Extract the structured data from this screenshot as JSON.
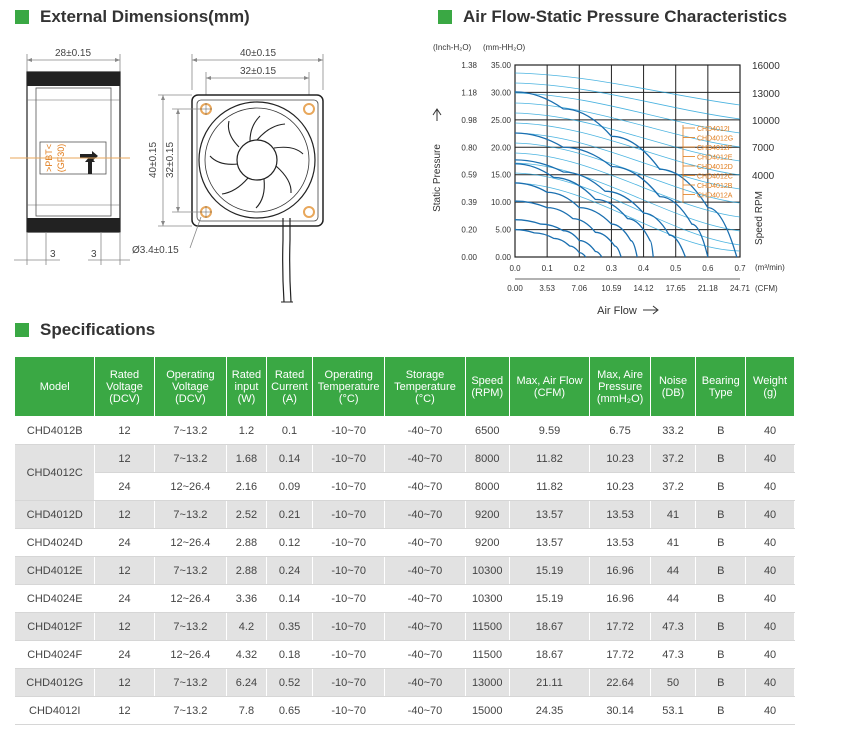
{
  "sections": {
    "dimensions_title": "External Dimensions(mm)",
    "chart_title": "Air Flow-Static Pressure Characteristics",
    "specs_title": "Specifications"
  },
  "dimensions": {
    "side_width": "28±0.15",
    "front_width": "40±0.15",
    "hole_spacing": "32±0.15",
    "front_height": "40±0.15",
    "hole_spacing_v": "32±0.15",
    "hole_diameter": "Ø3.4±0.15",
    "side_left": "3",
    "side_right": "3",
    "label_material": ">PBT<",
    "label_grade": "(GF30)"
  },
  "chart_data": {
    "type": "line",
    "unit_left_inch": "(Inch-H₂O)",
    "unit_left_mm": "(mm-HH₂O)",
    "ylabel": "Static Pressure",
    "xlabel": "Air Flow",
    "x_unit_m3": "(m³/min)",
    "x_unit_cfm": "(CFM)",
    "y2label": "Speed RPM",
    "y_ticks_inch": [
      "1.38",
      "1.18",
      "0.98",
      "0.80",
      "0.59",
      "0.39",
      "0.20",
      "0.00"
    ],
    "y_ticks_mm": [
      "35.00",
      "30.00",
      "25.00",
      "20.00",
      "15.00",
      "10.00",
      "5.00",
      "0.00"
    ],
    "x_ticks_m3": [
      "0.0",
      "0.1",
      "0.2",
      "0.3",
      "0.4",
      "0.5",
      "0.6",
      "0.7"
    ],
    "x_ticks_cfm": [
      "0.00",
      "3.53",
      "7.06",
      "10.59",
      "14.12",
      "17.65",
      "21.18",
      "24.71"
    ],
    "rpm_ticks": [
      "16000",
      "13000",
      "10000",
      "7000",
      "4000"
    ],
    "xlim": [
      0,
      0.7
    ],
    "ylim": [
      0,
      35
    ],
    "series": [
      {
        "name": "CHD4012I",
        "values": [
          [
            0,
            30.1
          ],
          [
            0.15,
            27
          ],
          [
            0.3,
            22
          ],
          [
            0.45,
            16
          ],
          [
            0.6,
            9
          ],
          [
            0.69,
            0
          ]
        ]
      },
      {
        "name": "CHD4012G",
        "values": [
          [
            0,
            22.6
          ],
          [
            0.15,
            20
          ],
          [
            0.3,
            16.5
          ],
          [
            0.45,
            11
          ],
          [
            0.55,
            6
          ],
          [
            0.6,
            0
          ]
        ]
      },
      {
        "name": "CHD4012F",
        "values": [
          [
            0,
            17.7
          ],
          [
            0.15,
            15.5
          ],
          [
            0.28,
            12
          ],
          [
            0.4,
            8
          ],
          [
            0.48,
            4
          ],
          [
            0.53,
            0
          ]
        ]
      },
      {
        "name": "CHD4012E",
        "values": [
          [
            0,
            17.0
          ],
          [
            0.12,
            14.5
          ],
          [
            0.25,
            10.5
          ],
          [
            0.35,
            7
          ],
          [
            0.42,
            3
          ],
          [
            0.43,
            0
          ]
        ]
      },
      {
        "name": "CHD4012D",
        "values": [
          [
            0,
            13.5
          ],
          [
            0.1,
            11.8
          ],
          [
            0.2,
            9
          ],
          [
            0.3,
            6
          ],
          [
            0.36,
            3
          ],
          [
            0.38,
            0
          ]
        ]
      },
      {
        "name": "CHD4012C",
        "values": [
          [
            0,
            10.2
          ],
          [
            0.1,
            9
          ],
          [
            0.18,
            7
          ],
          [
            0.25,
            4.5
          ],
          [
            0.31,
            2
          ],
          [
            0.33,
            0
          ]
        ]
      },
      {
        "name": "CHD4012B",
        "values": [
          [
            0,
            6.8
          ],
          [
            0.08,
            6
          ],
          [
            0.15,
            4.8
          ],
          [
            0.2,
            3
          ],
          [
            0.25,
            1
          ],
          [
            0.27,
            0
          ]
        ]
      },
      {
        "name": "CHD4012A",
        "values": [
          [
            0,
            5.0
          ],
          [
            0.06,
            4.4
          ],
          [
            0.12,
            3.4
          ],
          [
            0.17,
            2
          ],
          [
            0.2,
            0.8
          ],
          [
            0.22,
            0
          ]
        ]
      }
    ]
  },
  "table": {
    "headers": [
      "Model",
      "Rated Voltage (DCV)",
      "Operating Voltage (DCV)",
      "Rated input (W)",
      "Rated Current (A)",
      "Operating Temperature (°C)",
      "Storage Temperature (°C)",
      "Speed (RPM)",
      "Max, Air Flow (CFM)",
      "Max, Aire Pressure (mmH₂O)",
      "Noise (DB)",
      "Bearing Type",
      "Weight (g)"
    ],
    "rows": [
      [
        "CHD4012B",
        "12",
        "7~13.2",
        "1.2",
        "0.1",
        "-10~70",
        "-40~70",
        "6500",
        "9.59",
        "6.75",
        "33.2",
        "B",
        "40"
      ],
      [
        "CHD4012C",
        "12",
        "7~13.2",
        "1.68",
        "0.14",
        "-10~70",
        "-40~70",
        "8000",
        "11.82",
        "10.23",
        "37.2",
        "B",
        "40"
      ],
      [
        "",
        "24",
        "12~26.4",
        "2.16",
        "0.09",
        "-10~70",
        "-40~70",
        "8000",
        "11.82",
        "10.23",
        "37.2",
        "B",
        "40"
      ],
      [
        "CHD4012D",
        "12",
        "7~13.2",
        "2.52",
        "0.21",
        "-10~70",
        "-40~70",
        "9200",
        "13.57",
        "13.53",
        "41",
        "B",
        "40"
      ],
      [
        "CHD4024D",
        "24",
        "12~26.4",
        "2.88",
        "0.12",
        "-10~70",
        "-40~70",
        "9200",
        "13.57",
        "13.53",
        "41",
        "B",
        "40"
      ],
      [
        "CHD4012E",
        "12",
        "7~13.2",
        "2.88",
        "0.24",
        "-10~70",
        "-40~70",
        "10300",
        "15.19",
        "16.96",
        "44",
        "B",
        "40"
      ],
      [
        "CHD4024E",
        "24",
        "12~26.4",
        "3.36",
        "0.14",
        "-10~70",
        "-40~70",
        "10300",
        "15.19",
        "16.96",
        "44",
        "B",
        "40"
      ],
      [
        "CHD4012F",
        "12",
        "7~13.2",
        "4.2",
        "0.35",
        "-10~70",
        "-40~70",
        "11500",
        "18.67",
        "17.72",
        "47.3",
        "B",
        "40"
      ],
      [
        "CHD4024F",
        "24",
        "12~26.4",
        "4.32",
        "0.18",
        "-10~70",
        "-40~70",
        "11500",
        "18.67",
        "17.72",
        "47.3",
        "B",
        "40"
      ],
      [
        "CHD4012G",
        "12",
        "7~13.2",
        "6.24",
        "0.52",
        "-10~70",
        "-40~70",
        "13000",
        "21.11",
        "22.64",
        "50",
        "B",
        "40"
      ],
      [
        "CHD4012I",
        "12",
        "7~13.2",
        "7.8",
        "0.65",
        "-10~70",
        "-40~70",
        "15000",
        "24.35",
        "30.14",
        "53.1",
        "B",
        "40"
      ]
    ]
  },
  "colors": {
    "accent": "#3aa844",
    "curve": "#1a6fb0",
    "rpm_curve": "#1ea0d8",
    "legend": "#e07b1a",
    "dim_line": "#e8a75b"
  }
}
